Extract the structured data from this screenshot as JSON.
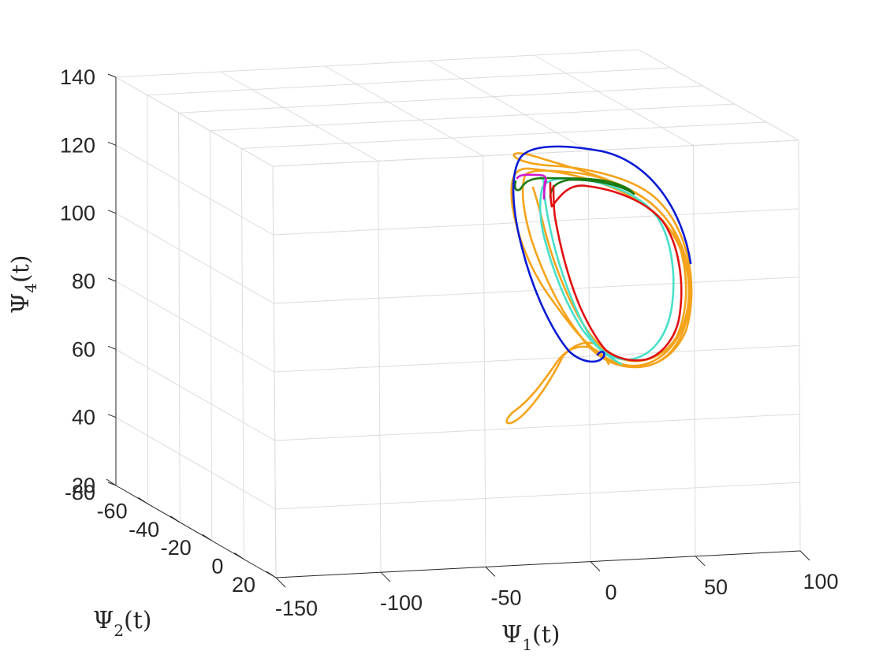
{
  "chart_data": {
    "type": "line3d",
    "title": "",
    "axes": {
      "x": {
        "label_main": "Ψ",
        "label_sub": "1",
        "label_tail": "(t)",
        "range": [
          -150,
          100
        ],
        "ticks": [
          "-150",
          "-100",
          "-50",
          "0",
          "50",
          "100"
        ]
      },
      "y": {
        "label_main": "Ψ",
        "label_sub": "2",
        "label_tail": "(t)",
        "range": [
          -80,
          20
        ],
        "ticks": [
          "-80",
          "-60",
          "-40",
          "-20",
          "0",
          "20"
        ]
      },
      "z": {
        "label_main": "Ψ",
        "label_sub": "4",
        "label_tail": "(t)",
        "range": [
          20,
          140
        ],
        "ticks": [
          "20",
          "40",
          "60",
          "80",
          "100",
          "120",
          "140"
        ]
      }
    },
    "grid": true,
    "series": [
      {
        "color": "#f5a31a"
      },
      {
        "color": "#0a1bd6"
      },
      {
        "color": "#e01010"
      },
      {
        "color": "#48e0c8"
      },
      {
        "color": "#1a7a12"
      },
      {
        "color": "#d01ad0"
      }
    ]
  }
}
